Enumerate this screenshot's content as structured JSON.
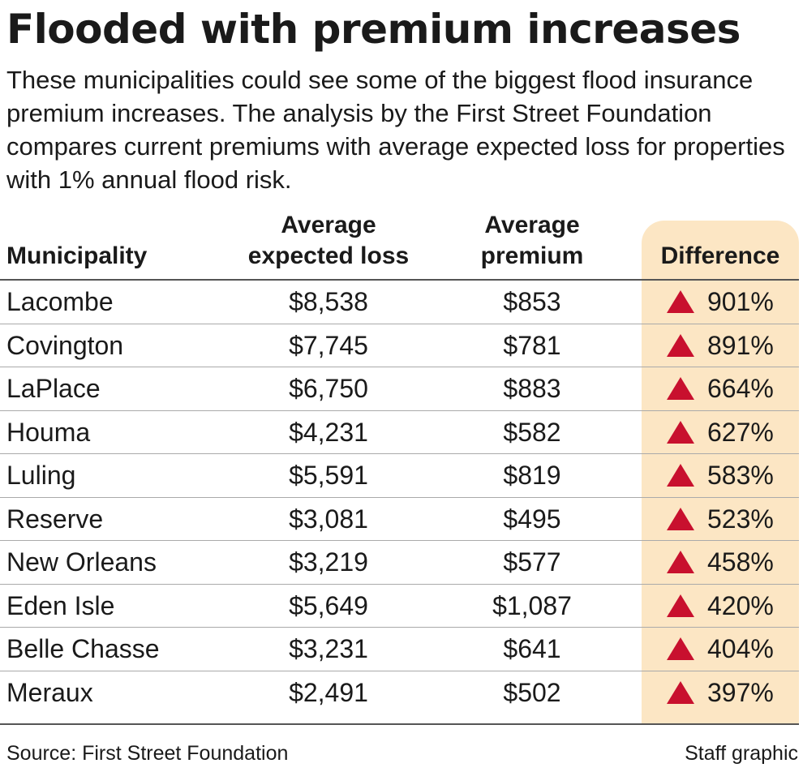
{
  "title": "Flooded with premium increases",
  "subtitle": "These municipalities could see some of the biggest flood insurance premium increases. The analysis by the First Street Foundation compares current premiums with average expected loss for properties with 1% annual flood risk.",
  "colors": {
    "highlight": "#fce6c4",
    "up_arrow": "#c8102e",
    "text": "#1a1a1a"
  },
  "chart_data": {
    "type": "table",
    "columns": [
      "Municipality",
      "Average expected loss",
      "Average premium",
      "Difference"
    ],
    "column_headers": {
      "municipality": [
        "Municipality"
      ],
      "loss": [
        "Average",
        "expected loss"
      ],
      "premium": [
        "Average",
        "premium"
      ],
      "difference": [
        "Difference"
      ]
    },
    "rows": [
      {
        "municipality": "Lacombe",
        "loss": "$8,538",
        "premium": "$853",
        "difference": "901%"
      },
      {
        "municipality": "Covington",
        "loss": "$7,745",
        "premium": "$781",
        "difference": "891%"
      },
      {
        "municipality": "LaPlace",
        "loss": "$6,750",
        "premium": "$883",
        "difference": "664%"
      },
      {
        "municipality": "Houma",
        "loss": "$4,231",
        "premium": "$582",
        "difference": "627%"
      },
      {
        "municipality": "Luling",
        "loss": "$5,591",
        "premium": "$819",
        "difference": "583%"
      },
      {
        "municipality": "Reserve",
        "loss": "$3,081",
        "premium": "$495",
        "difference": "523%"
      },
      {
        "municipality": "New Orleans",
        "loss": "$3,219",
        "premium": "$577",
        "difference": "458%"
      },
      {
        "municipality": "Eden Isle",
        "loss": "$5,649",
        "premium": "$1,087",
        "difference": "420%"
      },
      {
        "municipality": "Belle Chasse",
        "loss": "$3,231",
        "premium": "$641",
        "difference": "404%"
      },
      {
        "municipality": "Meraux",
        "loss": "$2,491",
        "premium": "$502",
        "difference": "397%"
      }
    ],
    "difference_direction": "up"
  },
  "footer": {
    "source": "Source: First Street Foundation",
    "credit": "Staff graphic"
  }
}
